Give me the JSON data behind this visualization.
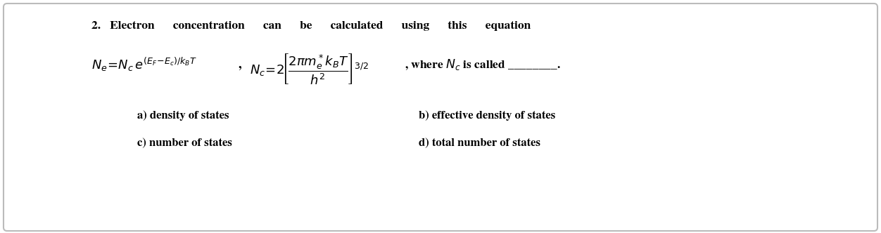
{
  "bg_color": "#ffffff",
  "border_color": "#bbbbbb",
  "text_color": "#000000",
  "figsize": [
    12.52,
    3.32
  ],
  "dpi": 100,
  "title_line": "2.   Electron      concentration      can      be      calculated      using      this      equation",
  "option_a": "a) density of states",
  "option_b": "b) effective density of states",
  "option_c": "c) number of states",
  "option_d": "d) total number of states"
}
